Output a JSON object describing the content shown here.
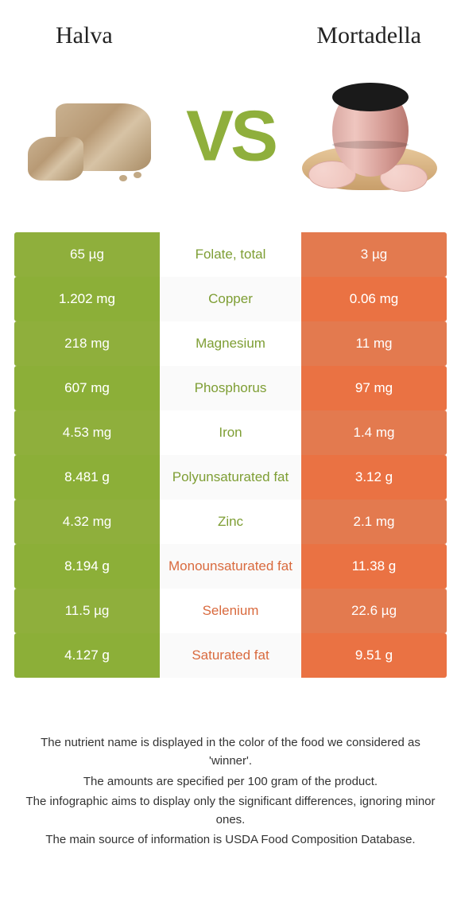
{
  "colors": {
    "green": "#8faf3c",
    "green_dark": "#82a234",
    "orange": "#e37a4f",
    "orange_dark": "#d96a3e",
    "text_green": "#7e9e34",
    "text_orange": "#d96a3e",
    "white": "#ffffff"
  },
  "foods": {
    "left": {
      "name": "Halva"
    },
    "right": {
      "name": "Mortadella"
    }
  },
  "vs_label": "VS",
  "rows": [
    {
      "left_val": "65 µg",
      "nutrient": "Folate, total",
      "right_val": "3 µg",
      "winner": "left"
    },
    {
      "left_val": "1.202 mg",
      "nutrient": "Copper",
      "right_val": "0.06 mg",
      "winner": "left"
    },
    {
      "left_val": "218 mg",
      "nutrient": "Magnesium",
      "right_val": "11 mg",
      "winner": "left"
    },
    {
      "left_val": "607 mg",
      "nutrient": "Phosphorus",
      "right_val": "97 mg",
      "winner": "left"
    },
    {
      "left_val": "4.53 mg",
      "nutrient": "Iron",
      "right_val": "1.4 mg",
      "winner": "left"
    },
    {
      "left_val": "8.481 g",
      "nutrient": "Polyunsaturated fat",
      "right_val": "3.12 g",
      "winner": "left"
    },
    {
      "left_val": "4.32 mg",
      "nutrient": "Zinc",
      "right_val": "2.1 mg",
      "winner": "left"
    },
    {
      "left_val": "8.194 g",
      "nutrient": "Monounsaturated fat",
      "right_val": "11.38 g",
      "winner": "right"
    },
    {
      "left_val": "11.5 µg",
      "nutrient": "Selenium",
      "right_val": "22.6 µg",
      "winner": "right"
    },
    {
      "left_val": "4.127 g",
      "nutrient": "Saturated fat",
      "right_val": "9.51 g",
      "winner": "right"
    }
  ],
  "footnotes": [
    "The nutrient name is displayed in the color of the food we considered as 'winner'.",
    "The amounts are specified per 100 gram of the product.",
    "The infographic aims to display only the significant differences, ignoring minor ones.",
    "The main source of information is USDA Food Composition Database."
  ]
}
